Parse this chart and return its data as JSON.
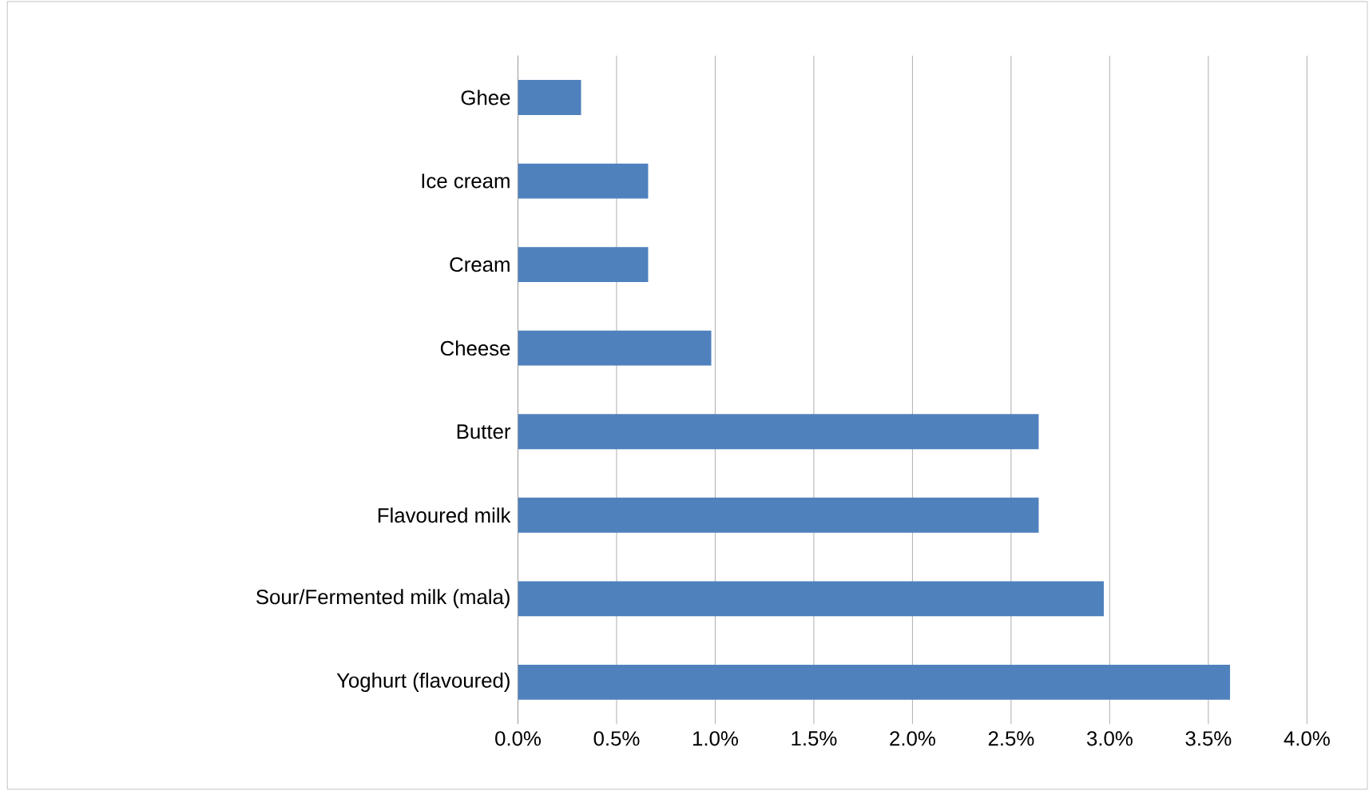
{
  "chart_data": {
    "type": "bar",
    "orientation": "horizontal",
    "categories": [
      "Ghee",
      "Ice cream",
      "Cream",
      "Cheese",
      "Butter",
      "Flavoured milk",
      "Sour/Fermented milk (mala)",
      "Yoghurt (flavoured)"
    ],
    "values": [
      0.32,
      0.66,
      0.66,
      0.98,
      2.64,
      2.64,
      2.97,
      3.61
    ],
    "color": "#4f81bd",
    "xlim": [
      0,
      4
    ],
    "xticks": [
      {
        "value": 0,
        "label": "0.0%"
      },
      {
        "value": 0.5,
        "label": "0.5%"
      },
      {
        "value": 1,
        "label": "1.0%"
      },
      {
        "value": 1.5,
        "label": "1.5%"
      },
      {
        "value": 2,
        "label": "2.0%"
      },
      {
        "value": 2.5,
        "label": "2.5%"
      },
      {
        "value": 3,
        "label": "3.0%"
      },
      {
        "value": 3.5,
        "label": "3.5%"
      },
      {
        "value": 4,
        "label": "4.0%"
      }
    ],
    "grid": "x"
  }
}
